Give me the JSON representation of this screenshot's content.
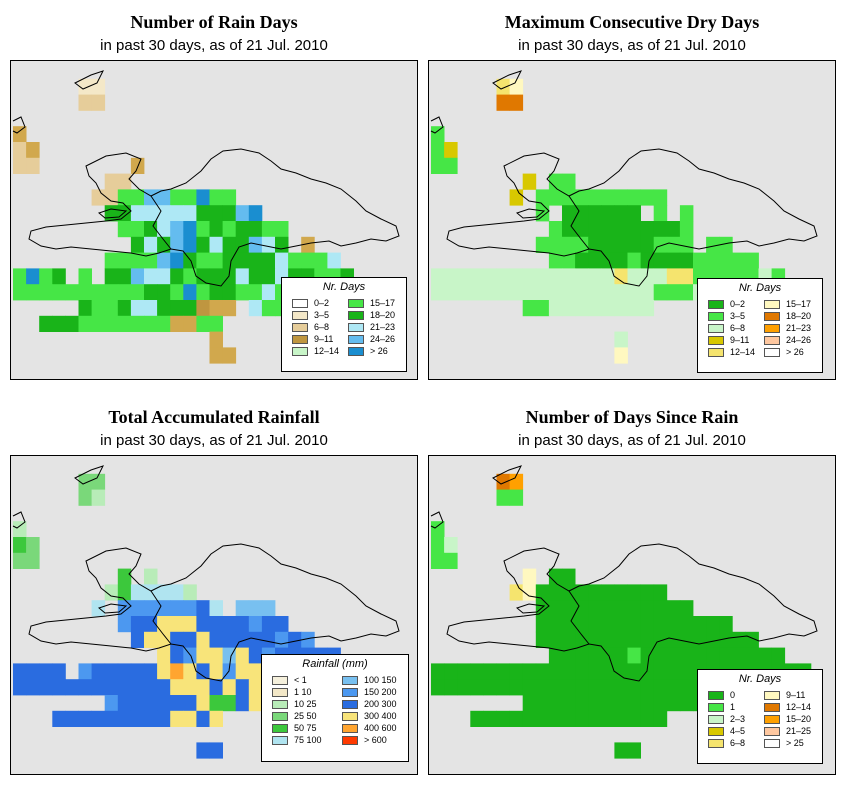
{
  "palettes": {
    "rain_days": [
      "#ffffff",
      "#f4e8c8",
      "#e6cd9a",
      "#d1a84d",
      "#bf9640",
      "#c8f5c8",
      "#46e646",
      "#19b419",
      "#aee8f5",
      "#64bcef",
      "#1a8ed0"
    ],
    "dry_days": [
      "#19b419",
      "#46e646",
      "#c8f5c8",
      "#d8c800",
      "#f5e46e",
      "#fff8c0",
      "#e07800",
      "#ffa000",
      "#ffc8a0",
      "#ffffff"
    ],
    "rainfall": [
      "#f5f0dc",
      "#f3e8c8",
      "#b8ecb8",
      "#7ad87a",
      "#3cc83c",
      "#b0e4f0",
      "#78c0f0",
      "#4c98f0",
      "#2a6ce0",
      "#f8e47a",
      "#ffa530",
      "#ff3a00"
    ],
    "since_rain": [
      "#19b419",
      "#46e646",
      "#c8f5c8",
      "#d8c800",
      "#f5e46e",
      "#fff8c0",
      "#e07800",
      "#ffa000",
      "#ffc8a0",
      "#ffffff"
    ]
  },
  "panels": [
    {
      "id": "rain-days",
      "title": "Number of Rain Days",
      "subtitle": "in past 30 days, as of  21 Jul. 2010",
      "legend_title": "Nr. Days",
      "legend": [
        {
          "label": "0–2",
          "color": "#ffffff"
        },
        {
          "label": "3–5",
          "color": "#f4e8c8"
        },
        {
          "label": "6–8",
          "color": "#e6cd9a"
        },
        {
          "label": "9–11",
          "color": "#bf9640"
        },
        {
          "label": "12–14",
          "color": "#c8f5c8"
        },
        {
          "label": "15–17",
          "color": "#46e646"
        },
        {
          "label": "18–20",
          "color": "#19b419"
        },
        {
          "label": "21–23",
          "color": "#aee8f5"
        },
        {
          "label": "24–26",
          "color": "#64bcef"
        },
        {
          "label": "> 26",
          "color": "#1a8ed0"
        }
      ]
    },
    {
      "id": "dry-days",
      "title": "Maximum Consecutive Dry Days",
      "subtitle": "in past 30 days, as of  21 Jul. 2010",
      "legend_title": "Nr. Days",
      "legend": [
        {
          "label": "0–2",
          "color": "#19b419"
        },
        {
          "label": "3–5",
          "color": "#46e646"
        },
        {
          "label": "6–8",
          "color": "#c8f5c8"
        },
        {
          "label": "9–11",
          "color": "#d8c800"
        },
        {
          "label": "12–14",
          "color": "#f5e46e"
        },
        {
          "label": "15–17",
          "color": "#fff8c0"
        },
        {
          "label": "18–20",
          "color": "#e07800"
        },
        {
          "label": "21–23",
          "color": "#ffa000"
        },
        {
          "label": "24–26",
          "color": "#ffc8a0"
        },
        {
          "label": "> 26",
          "color": "#ffffff"
        }
      ]
    },
    {
      "id": "rainfall",
      "title": "Total Accumulated Rainfall",
      "subtitle": "in past 30 days, as of  21 Jul. 2010",
      "legend_title": "Rainfall (mm)",
      "legend": [
        {
          "label": "< 1",
          "color": "#f5f0dc"
        },
        {
          "label": "1    10",
          "color": "#f3e8c8"
        },
        {
          "label": "10    25",
          "color": "#b8ecb8"
        },
        {
          "label": "25    50",
          "color": "#7ad87a"
        },
        {
          "label": "50    75",
          "color": "#3cc83c"
        },
        {
          "label": "75  100",
          "color": "#b0e4f0"
        },
        {
          "label": "100  150",
          "color": "#78c0f0"
        },
        {
          "label": "150  200",
          "color": "#4c98f0"
        },
        {
          "label": "200  300",
          "color": "#2a6ce0"
        },
        {
          "label": "300  400",
          "color": "#f8e47a"
        },
        {
          "label": "400  600",
          "color": "#ffa530"
        },
        {
          "label": "> 600",
          "color": "#ff3a00"
        }
      ]
    },
    {
      "id": "since-rain",
      "title": "Number of Days Since Rain",
      "subtitle": "in past 30 days, as of  21 Jul. 2010",
      "legend_title": "Nr. Days",
      "legend": [
        {
          "label": "0",
          "color": "#19b419"
        },
        {
          "label": "1",
          "color": "#46e646"
        },
        {
          "label": "2–3",
          "color": "#c8f5c8"
        },
        {
          "label": "4–5",
          "color": "#d8c800"
        },
        {
          "label": "6–8",
          "color": "#f5e46e"
        },
        {
          "label": "9–11",
          "color": "#fff8c0"
        },
        {
          "label": "12–14",
          "color": "#e07800"
        },
        {
          "label": "15–20",
          "color": "#ffa000"
        },
        {
          "label": "21–25",
          "color": "#ffc8a0"
        },
        {
          "label": "> 25",
          "color": "#ffffff"
        }
      ]
    }
  ],
  "grids": {
    "rain-days": [
      "...............................",
      ".....11........................",
      ".....22........................",
      "................................",
      "3..............................",
      "23.............................",
      "22.......3.....................",
      ".......22.......................",
      "......22669966A66..............",
      ".......77888887779A............",
      "........66789A6767766...........",
      ".........7879A7877987.3.........",
      ".......66669A766777786668.......",
      "6A67.6.7798876777877877667......",
      "6666666666776A67766867776A63....",
      ".....766788777433.866776666.....",
      "..77766666663366................",
      "...............3................",
      "...............33..............."
    ],
    "dry-days": [
      "...................................",
      ".....45.........................",
      ".....66.........................",
      "................................",
      "1..............................",
      "13.............................",
      "11.............................",
      ".......3.11.....................",
      "......3.1111111111.............",
      "........1.000000.1.1..........",
      ".........10000000001...........",
      "........111100000111.11.......",
      ".........1100001000011111......",
      "222222222222224222441111121.....",
      "2222222222222222211122222222....",
      ".......1122222222..............",
      ".................................",
      "..............2..................",
      "..............5.................."
    ],
    "rainfall": [
      "................................",
      ".....33.........................",
      ".....32.........................",
      "................................",
      "2..............................",
      "43.............................",
      "33.............................",
      "........4.2.....................",
      ".......2455552........................",
      "......5.77777785.666........",
      "........7889998888788...............",
      ".........89988988888787.......",
      "...........98799698788888......",
      "8888.7888889A9897998779A97.....",
      "88888888888899989899988999888..",
      ".......7888888944898876998.....",
      "...8888888889989................",
      "................................",
      "..............88.................."
    ],
    "since-rain": [
      "................................",
      ".....67.........................",
      ".....11.........................",
      "................................",
      "1..............................",
      "12.............................",
      "11.............................",
      ".......5.00.....................",
      "......450000000000..............",
      "........000000000000..........",
      "........000000000000000........",
      "........00000000000000000......",
      ".........000000100000000000....",
      "00000000000000000000000000000...",
      "0000000000000000000000000000....",
      ".......0000000000000000000......",
      "...000000000000000..............",
      "................................",
      "..............00................"
    ]
  }
}
